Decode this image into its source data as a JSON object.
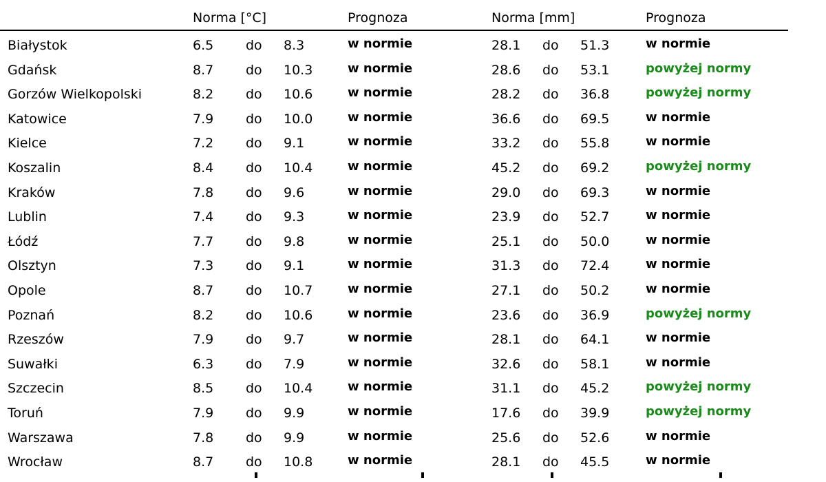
{
  "header": {
    "temp_norm": "Norma [°C]",
    "temp_forecast": "Prognoza",
    "precip_norm": "Norma [mm]",
    "precip_forecast": "Prognoza"
  },
  "colors": {
    "above_norm": "#1a8a1a",
    "in_norm": "#000000"
  },
  "rows": [
    {
      "city": "Białystok",
      "tmin": "6.5",
      "tdo": "do",
      "tmax": "8.3",
      "tfc": "w normie",
      "pmin": "28.1",
      "pdo": "do",
      "pmax": "51.3",
      "pfc": "w normie"
    },
    {
      "city": "Gdańsk",
      "tmin": "8.7",
      "tdo": "do",
      "tmax": "10.3",
      "tfc": "w normie",
      "pmin": "28.6",
      "pdo": "do",
      "pmax": "53.1",
      "pfc": "powyżej normy"
    },
    {
      "city": "Gorzów Wielkopolski",
      "tmin": "8.2",
      "tdo": "do",
      "tmax": "10.6",
      "tfc": "w normie",
      "pmin": "28.2",
      "pdo": "do",
      "pmax": "36.8",
      "pfc": "powyżej normy"
    },
    {
      "city": "Katowice",
      "tmin": "7.9",
      "tdo": "do",
      "tmax": "10.0",
      "tfc": "w normie",
      "pmin": "36.6",
      "pdo": "do",
      "pmax": "69.5",
      "pfc": "w normie"
    },
    {
      "city": "Kielce",
      "tmin": "7.2",
      "tdo": "do",
      "tmax": "9.1",
      "tfc": "w normie",
      "pmin": "33.2",
      "pdo": "do",
      "pmax": "55.8",
      "pfc": "w normie"
    },
    {
      "city": "Koszalin",
      "tmin": "8.4",
      "tdo": "do",
      "tmax": "10.4",
      "tfc": "w normie",
      "pmin": "45.2",
      "pdo": "do",
      "pmax": "69.2",
      "pfc": "powyżej normy"
    },
    {
      "city": "Kraków",
      "tmin": "7.8",
      "tdo": "do",
      "tmax": "9.6",
      "tfc": "w normie",
      "pmin": "29.0",
      "pdo": "do",
      "pmax": "69.3",
      "pfc": "w normie"
    },
    {
      "city": "Lublin",
      "tmin": "7.4",
      "tdo": "do",
      "tmax": "9.3",
      "tfc": "w normie",
      "pmin": "23.9",
      "pdo": "do",
      "pmax": "52.7",
      "pfc": "w normie"
    },
    {
      "city": "Łódź",
      "tmin": "7.7",
      "tdo": "do",
      "tmax": "9.8",
      "tfc": "w normie",
      "pmin": "25.1",
      "pdo": "do",
      "pmax": "50.0",
      "pfc": "w normie"
    },
    {
      "city": "Olsztyn",
      "tmin": "7.3",
      "tdo": "do",
      "tmax": "9.1",
      "tfc": "w normie",
      "pmin": "31.3",
      "pdo": "do",
      "pmax": "72.4",
      "pfc": "w normie"
    },
    {
      "city": "Opole",
      "tmin": "8.7",
      "tdo": "do",
      "tmax": "10.7",
      "tfc": "w normie",
      "pmin": "27.1",
      "pdo": "do",
      "pmax": "50.2",
      "pfc": "w normie"
    },
    {
      "city": "Poznań",
      "tmin": "8.2",
      "tdo": "do",
      "tmax": "10.6",
      "tfc": "w normie",
      "pmin": "23.6",
      "pdo": "do",
      "pmax": "36.9",
      "pfc": "powyżej normy"
    },
    {
      "city": "Rzeszów",
      "tmin": "7.9",
      "tdo": "do",
      "tmax": "9.7",
      "tfc": "w normie",
      "pmin": "28.1",
      "pdo": "do",
      "pmax": "64.1",
      "pfc": "w normie"
    },
    {
      "city": "Suwałki",
      "tmin": "6.3",
      "tdo": "do",
      "tmax": "7.9",
      "tfc": "w normie",
      "pmin": "32.6",
      "pdo": "do",
      "pmax": "58.1",
      "pfc": "w normie"
    },
    {
      "city": "Szczecin",
      "tmin": "8.5",
      "tdo": "do",
      "tmax": "10.4",
      "tfc": "w normie",
      "pmin": "31.1",
      "pdo": "do",
      "pmax": "45.2",
      "pfc": "powyżej normy"
    },
    {
      "city": "Toruń",
      "tmin": "7.9",
      "tdo": "do",
      "tmax": "9.9",
      "tfc": "w normie",
      "pmin": "17.6",
      "pdo": "do",
      "pmax": "39.9",
      "pfc": "powyżej normy"
    },
    {
      "city": "Warszawa",
      "tmin": "7.8",
      "tdo": "do",
      "tmax": "9.9",
      "tfc": "w normie",
      "pmin": "25.6",
      "pdo": "do",
      "pmax": "52.6",
      "pfc": "w normie"
    },
    {
      "city": "Wrocław",
      "tmin": "8.7",
      "tdo": "do",
      "tmax": "10.8",
      "tfc": "w normie",
      "pmin": "28.1",
      "pdo": "do",
      "pmax": "45.5",
      "pfc": "w normie"
    }
  ]
}
